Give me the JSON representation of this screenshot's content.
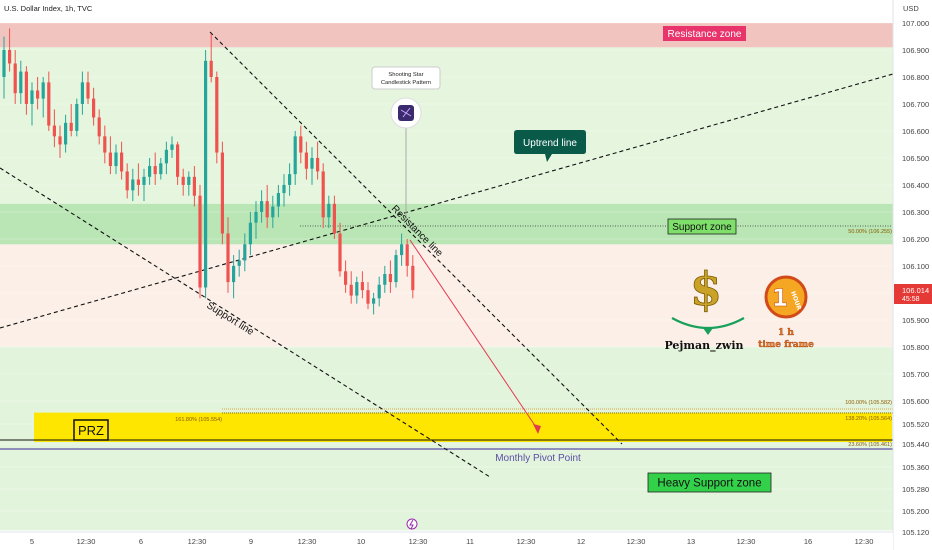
{
  "header": {
    "title": "U.S. Dollar Index, 1h, TVC",
    "currency": "USD"
  },
  "chart_data": {
    "type": "candlestick",
    "title": "U.S. Dollar Index, 1h, TVC",
    "y_axis": {
      "unit": "USD",
      "ticks": [
        "107.000",
        "106.900",
        "106.800",
        "106.700",
        "106.600",
        "106.500",
        "106.400",
        "106.300",
        "106.200",
        "106.100",
        "106.000",
        "105.900",
        "105.800",
        "105.700",
        "105.600",
        "105.520",
        "105.440",
        "105.360",
        "105.280",
        "105.200",
        "105.120"
      ]
    },
    "x_axis": {
      "ticks": [
        "5",
        "12:30",
        "6",
        "12:30",
        "9",
        "12:30",
        "10",
        "12:30",
        "11",
        "12:30",
        "12",
        "12:30",
        "13",
        "12:30",
        "16",
        "12:30"
      ]
    },
    "current_price": {
      "value": "106.014",
      "countdown": "45:58",
      "color": "#e53935"
    },
    "candles": [
      [
        106.8,
        106.95,
        106.72,
        106.9
      ],
      [
        106.9,
        106.98,
        106.82,
        106.85
      ],
      [
        106.85,
        106.9,
        106.7,
        106.74
      ],
      [
        106.74,
        106.86,
        106.7,
        106.82
      ],
      [
        106.82,
        106.84,
        106.66,
        106.7
      ],
      [
        106.7,
        106.78,
        106.62,
        106.75
      ],
      [
        106.75,
        106.8,
        106.68,
        106.72
      ],
      [
        106.72,
        106.8,
        106.65,
        106.78
      ],
      [
        106.78,
        106.82,
        106.6,
        106.62
      ],
      [
        106.62,
        106.68,
        106.54,
        106.58
      ],
      [
        106.58,
        106.62,
        106.5,
        106.55
      ],
      [
        106.55,
        106.66,
        106.52,
        106.63
      ],
      [
        106.63,
        106.7,
        106.58,
        106.6
      ],
      [
        106.6,
        106.72,
        106.58,
        106.7
      ],
      [
        106.7,
        106.82,
        106.66,
        106.78
      ],
      [
        106.78,
        106.82,
        106.7,
        106.72
      ],
      [
        106.72,
        106.76,
        106.62,
        106.65
      ],
      [
        106.65,
        106.68,
        106.55,
        106.58
      ],
      [
        106.58,
        106.62,
        106.48,
        106.52
      ],
      [
        106.52,
        106.58,
        106.44,
        106.47
      ],
      [
        106.47,
        106.55,
        106.44,
        106.52
      ],
      [
        106.52,
        106.56,
        106.42,
        106.45
      ],
      [
        106.45,
        106.48,
        106.35,
        106.38
      ],
      [
        106.38,
        106.46,
        106.34,
        106.42
      ],
      [
        106.42,
        106.48,
        106.36,
        106.4
      ],
      [
        106.4,
        106.46,
        106.34,
        106.43
      ],
      [
        106.43,
        106.5,
        106.4,
        106.47
      ],
      [
        106.47,
        106.52,
        106.4,
        106.44
      ],
      [
        106.44,
        106.5,
        106.42,
        106.48
      ],
      [
        106.48,
        106.56,
        106.44,
        106.53
      ],
      [
        106.53,
        106.58,
        106.5,
        106.55
      ],
      [
        106.55,
        106.56,
        106.4,
        106.43
      ],
      [
        106.43,
        106.46,
        106.36,
        106.4
      ],
      [
        106.4,
        106.45,
        106.36,
        106.43
      ],
      [
        106.43,
        106.47,
        106.32,
        106.36
      ],
      [
        106.36,
        106.4,
        105.98,
        106.02
      ],
      [
        106.02,
        106.9,
        105.98,
        106.86
      ],
      [
        106.86,
        106.96,
        106.78,
        106.8
      ],
      [
        106.8,
        106.82,
        106.48,
        106.52
      ],
      [
        106.52,
        106.56,
        106.18,
        106.22
      ],
      [
        106.22,
        106.28,
        106.0,
        106.04
      ],
      [
        106.04,
        106.14,
        105.98,
        106.1
      ],
      [
        106.1,
        106.16,
        106.06,
        106.12
      ],
      [
        106.12,
        106.22,
        106.08,
        106.18
      ],
      [
        106.18,
        106.3,
        106.14,
        106.26
      ],
      [
        106.26,
        106.34,
        106.2,
        106.3
      ],
      [
        106.3,
        106.38,
        106.26,
        106.34
      ],
      [
        106.34,
        106.4,
        106.24,
        106.28
      ],
      [
        106.28,
        106.36,
        106.24,
        106.32
      ],
      [
        106.32,
        106.4,
        106.28,
        106.37
      ],
      [
        106.37,
        106.44,
        106.32,
        106.4
      ],
      [
        106.4,
        106.48,
        106.36,
        106.44
      ],
      [
        106.44,
        106.6,
        106.4,
        106.58
      ],
      [
        106.58,
        106.62,
        106.48,
        106.52
      ],
      [
        106.52,
        106.56,
        106.42,
        106.46
      ],
      [
        106.46,
        106.54,
        106.4,
        106.5
      ],
      [
        106.5,
        106.56,
        106.42,
        106.45
      ],
      [
        106.45,
        106.48,
        106.24,
        106.28
      ],
      [
        106.28,
        106.36,
        106.24,
        106.33
      ],
      [
        106.33,
        106.36,
        106.2,
        106.22
      ],
      [
        106.22,
        106.26,
        106.06,
        106.08
      ],
      [
        106.08,
        106.12,
        106.0,
        106.03
      ],
      [
        106.03,
        106.08,
        105.96,
        105.99
      ],
      [
        105.99,
        106.06,
        105.96,
        106.04
      ],
      [
        106.04,
        106.08,
        105.98,
        106.01
      ],
      [
        106.01,
        106.04,
        105.94,
        105.96
      ],
      [
        105.96,
        106.0,
        105.92,
        105.98
      ],
      [
        105.98,
        106.06,
        105.95,
        106.03
      ],
      [
        106.03,
        106.1,
        106.0,
        106.07
      ],
      [
        106.07,
        106.12,
        106.0,
        106.04
      ],
      [
        106.04,
        106.16,
        106.02,
        106.14
      ],
      [
        106.14,
        106.22,
        106.1,
        106.18
      ],
      [
        106.18,
        106.2,
        106.06,
        106.1
      ],
      [
        106.1,
        106.14,
        105.98,
        106.01
      ]
    ],
    "shapes": {
      "resistance_zone": [
        106.91,
        107.0
      ],
      "support_zone": [
        106.18,
        106.33
      ],
      "band_upper": [
        105.8,
        106.91
      ],
      "band_lower": [
        105.12,
        105.8
      ],
      "prz_zone": [
        105.44,
        105.56
      ],
      "fib_levels": [
        {
          "label": "100.00% (105.582)",
          "value": 105.582
        },
        {
          "label": "138.20% (105.564)",
          "value": 105.564
        },
        {
          "label": "161.80% (105.554)",
          "value": 105.554
        },
        {
          "label": "23.60% (105.461)",
          "value": 105.461
        },
        {
          "label": "50.00% (106.255)",
          "value": 106.255
        }
      ],
      "monthly_pivot": 105.445
    },
    "annotations": {
      "resistance_zone": "Resistance zone",
      "support_zone": "Support zone",
      "heavy_support_zone": "Heavy Support zone",
      "prz": "PRZ",
      "monthly_pivot": "Monthly Pivot Point",
      "uptrend_line": "Uptrend line",
      "resistance_line": "Resistance line",
      "support_line": "Support line",
      "pattern_line1": "Shooting Star",
      "pattern_line2": "Candlestick Pattern"
    },
    "colors": {
      "up": "#26a69a",
      "down": "#ef5350",
      "resistance_zone": "#f2c4bf",
      "support_zone": "#b9e6b4",
      "band_upper": "#fbefe8",
      "band_lower": "#e3f4dc",
      "prz": "#ffe600",
      "pivot": "#5b4fa8",
      "arrow": "#e53950"
    }
  },
  "branding": {
    "author": "Pejman_zwin",
    "timeframe_label": "1 h",
    "timeframe_text": "time frame",
    "hour_badge": "HOUR",
    "hour_number": "1",
    "dollar_icon": "dollar-sign-icon"
  }
}
